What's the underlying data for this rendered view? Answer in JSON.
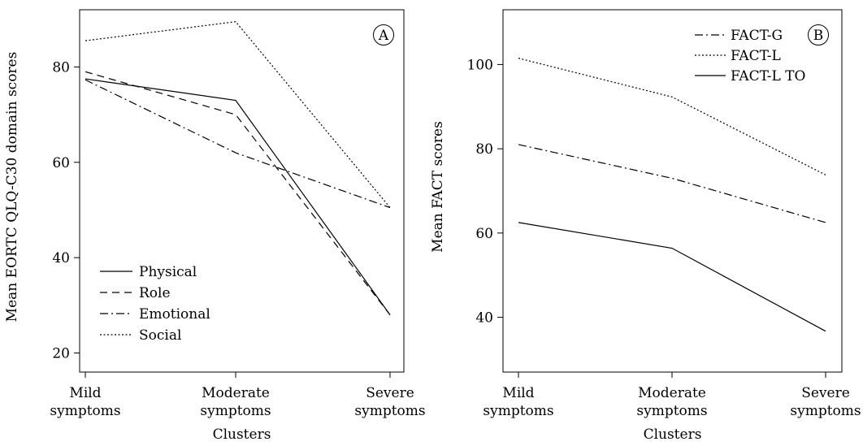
{
  "chart_data": [
    {
      "type": "line",
      "panel_label": "A",
      "xlabel": "Clusters",
      "ylabel": "Mean EORTC QLQ-C30 domain scores",
      "categories": [
        [
          "Mild",
          "symptoms"
        ],
        [
          "Moderate",
          "symptoms"
        ],
        [
          "Severe",
          "symptoms"
        ]
      ],
      "yticks": [
        20,
        40,
        60,
        80
      ],
      "ylim": [
        16,
        92
      ],
      "grid": false,
      "legend_position": "bottom-left",
      "series": [
        {
          "name": "Physical",
          "style": "solid",
          "values": [
            77.5,
            73,
            28
          ]
        },
        {
          "name": "Role",
          "style": "dashed",
          "values": [
            79,
            70,
            28
          ]
        },
        {
          "name": "Emotional",
          "style": "dashdot",
          "values": [
            77.3,
            62,
            50.5
          ]
        },
        {
          "name": "Social",
          "style": "dotted",
          "values": [
            85.5,
            89.5,
            50.5
          ]
        }
      ]
    },
    {
      "type": "line",
      "panel_label": "B",
      "xlabel": "Clusters",
      "ylabel": "Mean FACT scores",
      "categories": [
        [
          "Mild",
          "symptoms"
        ],
        [
          "Moderate",
          "symptoms"
        ],
        [
          "Severe",
          "symptoms"
        ]
      ],
      "yticks": [
        40,
        60,
        80,
        100
      ],
      "ylim": [
        27,
        113
      ],
      "grid": false,
      "legend_position": "top-right",
      "series": [
        {
          "name": "FACT-G",
          "style": "dashdot",
          "values": [
            81,
            73,
            62.5
          ]
        },
        {
          "name": "FACT-L",
          "style": "dotted",
          "values": [
            101.5,
            92.3,
            73.8
          ]
        },
        {
          "name": "FACT-L TO",
          "style": "solid",
          "values": [
            62.5,
            56.4,
            36.7
          ]
        }
      ]
    }
  ]
}
